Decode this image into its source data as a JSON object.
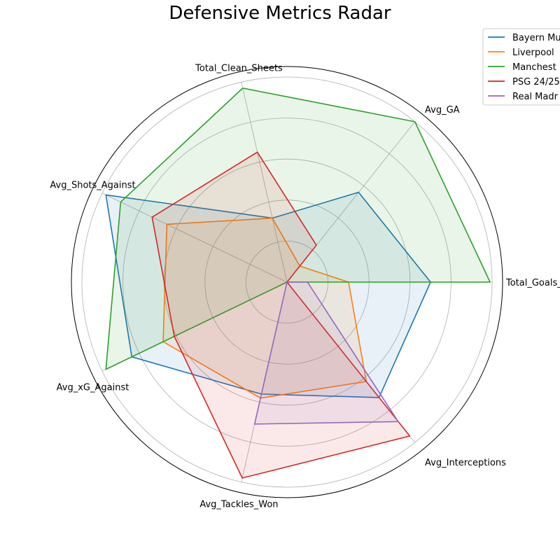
{
  "chart_data": {
    "type": "radar",
    "title": "Defensive Metrics Radar",
    "axes": [
      "Total_Goals_Against",
      "Avg_GA",
      "Total_Clean_Sheets",
      "Avg_Shots_Against",
      "Avg_xG_Against",
      "Avg_Tackles_Won",
      "Avg_Interceptions"
    ],
    "rlim": [
      0,
      1.0
    ],
    "grid": true,
    "legend_position": "top-right",
    "series": [
      {
        "name": "Bayern Mu",
        "color": "#1f77b4",
        "values": [
          0.7,
          0.56,
          0.32,
          0.98,
          0.84,
          0.56,
          0.72
        ]
      },
      {
        "name": "Liverpool",
        "color": "#ff7f0e",
        "values": [
          0.3,
          0.1,
          0.32,
          0.65,
          0.67,
          0.58,
          0.62
        ]
      },
      {
        "name": "Manchest",
        "color": "#2ca02c",
        "values": [
          0.99,
          1.0,
          0.97,
          0.9,
          0.98,
          0.0,
          0.0
        ]
      },
      {
        "name": "PSG 24/25",
        "color": "#d62728",
        "values": [
          0.0,
          0.23,
          0.65,
          0.73,
          0.61,
          0.98,
          0.96
        ]
      },
      {
        "name": "Real Madr",
        "color": "#9467bd",
        "values": [
          0.1,
          0.0,
          0.0,
          0.0,
          0.0,
          0.71,
          0.87
        ]
      }
    ]
  }
}
